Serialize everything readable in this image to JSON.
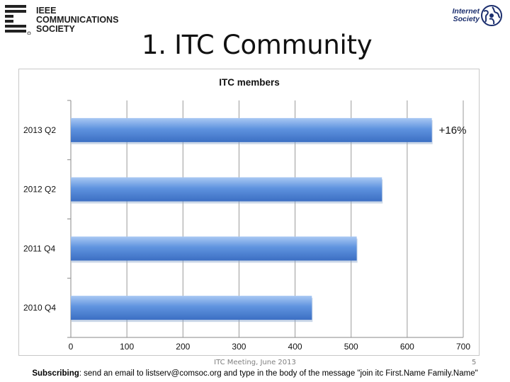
{
  "header": {
    "left_logo_lines": [
      "IEEE",
      "COMMUNICATIONS",
      "SOCIETY"
    ],
    "right_logo_lines": [
      "Internet",
      "Society"
    ],
    "title": "1. ITC Community"
  },
  "chart_data": {
    "type": "bar",
    "orientation": "horizontal",
    "title": "ITC members",
    "categories": [
      "2013 Q2",
      "2012 Q2",
      "2011 Q4",
      "2010 Q4"
    ],
    "values": [
      644,
      555,
      510,
      430
    ],
    "xticks": [
      "0",
      "100",
      "200",
      "300",
      "400",
      "500",
      "600",
      "700"
    ],
    "xlim": [
      0,
      700
    ],
    "grid": true,
    "bar_color": "#4f86d8",
    "annotation": {
      "category": "2013 Q2",
      "text": "+16%"
    }
  },
  "footer": {
    "meeting": "ITC Meeting, June 2013",
    "page": "5",
    "subscribe_label": "Subscribing",
    "subscribe_text": ": send an email to listserv@comsoc.org and type in the body of the message \"join itc First.Name Family.Name\""
  }
}
